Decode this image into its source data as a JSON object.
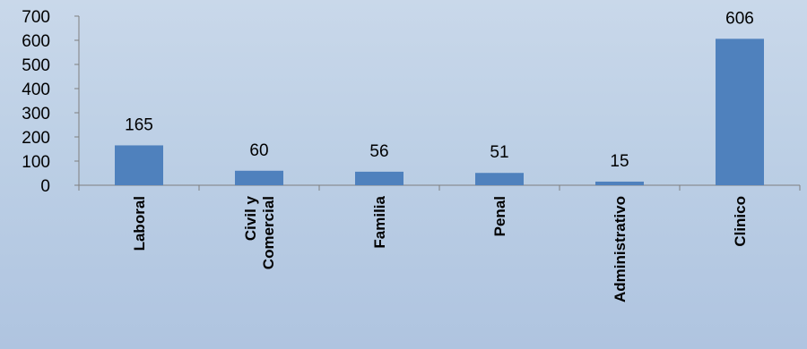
{
  "chart_data": {
    "type": "bar",
    "title": "",
    "xlabel": "",
    "ylabel": "",
    "categories": [
      [
        "Laboral"
      ],
      [
        "Civil y",
        "Comercial"
      ],
      [
        "Familia"
      ],
      [
        "Penal"
      ],
      [
        "Administrativo"
      ],
      [
        "Clinico"
      ]
    ],
    "values": [
      165,
      60,
      56,
      51,
      15,
      606
    ],
    "ylim": [
      0,
      700
    ],
    "yticks": [
      0,
      100,
      200,
      300,
      400,
      500,
      600,
      700
    ],
    "grid": false,
    "legend": "none",
    "bar_color": "#4f81bd",
    "axis_color": "#7f7f7f"
  }
}
